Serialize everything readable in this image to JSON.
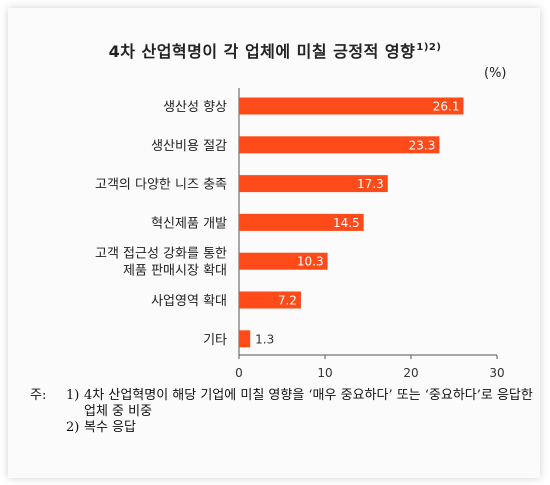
{
  "chart_data": {
    "type": "bar",
    "orientation": "horizontal",
    "title": "4차 산업혁명이 각 업체에 미칠 긍정적 영향",
    "title_sup": "1)2)",
    "unit": "(%)",
    "categories": [
      [
        "생산성 향상"
      ],
      [
        "생산비용 절감"
      ],
      [
        "고객의 다양한 니즈 충족"
      ],
      [
        "혁신제품 개발"
      ],
      [
        "고객 접근성 강화를 통한",
        "제품 판매시장 확대"
      ],
      [
        "사업영역 확대"
      ],
      [
        "기타"
      ]
    ],
    "values": [
      26.1,
      23.3,
      17.3,
      14.5,
      10.3,
      7.2,
      1.3
    ],
    "value_labels": [
      "26.1",
      "23.3",
      "17.3",
      "14.5",
      "10.3",
      "7.2",
      "1.3"
    ],
    "xlim": [
      0,
      30
    ],
    "xticks": [
      0,
      10,
      20,
      30
    ],
    "xtick_labels": [
      "0",
      "10",
      "20",
      "30"
    ],
    "bar_color": "#ff4a1a",
    "grid": false,
    "legend": "none"
  },
  "notes": {
    "lead": "주:",
    "items": [
      {
        "num": "1)",
        "text": "4차 산업혁명이 해당 기업에 미칠 영향을 ‘매우 중요하다’ 또는 ‘중요하다’로 응답한 업체 중 비중"
      },
      {
        "num": "2)",
        "text": "복수 응답"
      }
    ]
  }
}
